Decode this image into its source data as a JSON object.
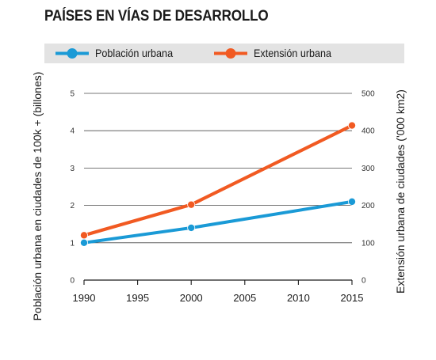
{
  "chart_data": {
    "type": "line",
    "title": "PAÍSES EN VÍAS DE DESARROLLO",
    "x": [
      1990,
      2000,
      2015
    ],
    "xticks": [
      1990,
      1995,
      2000,
      2005,
      2010,
      2015
    ],
    "xlim": [
      1990,
      2015
    ],
    "ylabel": "Población urbana en ciudades de 100k + (billones)",
    "y2label": "Extensión urbana de ciudades ('000 km2)",
    "ylim": [
      0,
      5
    ],
    "y2lim": [
      0,
      500
    ],
    "yticks": [
      0,
      1,
      2,
      3,
      4,
      5
    ],
    "y2ticks": [
      0,
      100,
      200,
      300,
      400,
      500
    ],
    "grid": "horizontal",
    "legend_position": "top",
    "series": [
      {
        "name": "Población urbana",
        "axis": "left",
        "color": "#1a9ad6",
        "values": [
          1.0,
          1.4,
          2.1
        ]
      },
      {
        "name": "Extensión urbana",
        "axis": "right",
        "color": "#f15a22",
        "values": [
          120,
          202,
          414
        ]
      }
    ]
  }
}
